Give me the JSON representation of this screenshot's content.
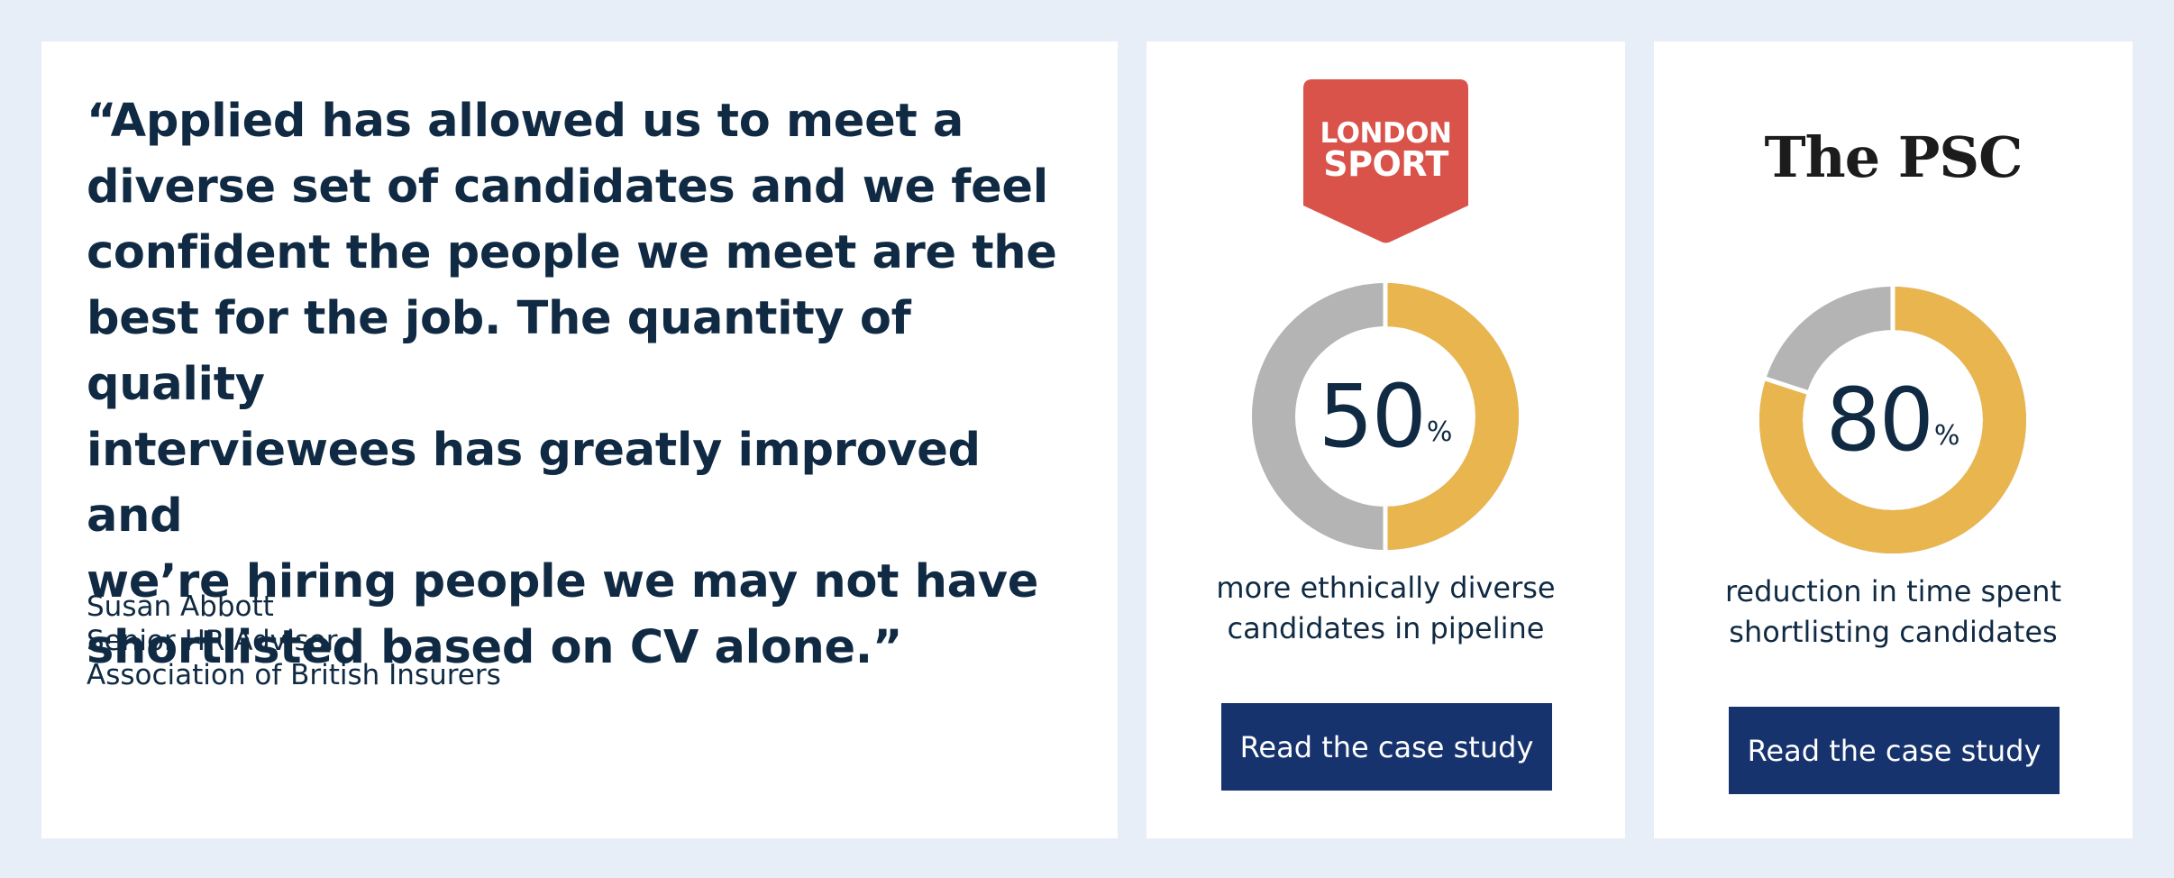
{
  "testimonial": {
    "quote_lines": [
      "“Applied has allowed us to meet a",
      "diverse set of candidates and we feel",
      "confident the people we meet are the",
      "best for the job. The quantity of quality",
      "interviewees has greatly improved and",
      "we’re hiring people we may not have",
      "shortlisted based on CV alone.”"
    ],
    "author_name": "Susan Abbott",
    "author_title": "Senior HR Advisor",
    "author_company": "Association of British Insurers"
  },
  "case_studies": [
    {
      "logo": {
        "line1": "LONDON",
        "line2": "SPORT",
        "color": "#d9534a"
      },
      "stat_value": "50",
      "stat_unit": "%",
      "stat_fraction": 0.5,
      "description_lines": [
        "more ethnically diverse",
        "candidates in pipeline"
      ],
      "cta_label": "Read the case study"
    },
    {
      "logo": {
        "text": "The PSC"
      },
      "stat_value": "80",
      "stat_unit": "%",
      "stat_fraction": 0.8,
      "description_lines": [
        "reduction in time spent",
        "shortlisting candidates"
      ],
      "cta_label": "Read the case study"
    }
  ],
  "colors": {
    "page_background": "#e7eef8",
    "donut_fill": "#e9b54f",
    "donut_track": "#b4b4b4",
    "button": "#17336e",
    "text": "#102a43"
  }
}
